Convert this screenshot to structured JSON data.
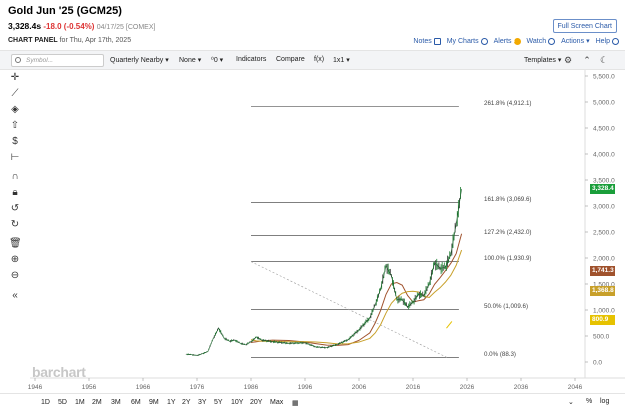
{
  "header": {
    "title": "Gold Jun '25 (GCM25)",
    "last": "3,328.4s",
    "change": "-18.0 (-0.54%)",
    "meta": "04/17/25 [COMEX]",
    "panel_label": "CHART PANEL",
    "panel_date": "for Thu, Apr 17th, 2025",
    "fullscreen": "Full Screen Chart",
    "links": {
      "notes": "Notes",
      "mycharts": "My Charts",
      "alerts": "Alerts",
      "watch": "Watch",
      "actions": "Actions",
      "help": "Help"
    }
  },
  "toolbar": {
    "search_placeholder": "Symbol...",
    "period": "Quarterly Nearby",
    "none": "None",
    "zero": "0",
    "indicators": "Indicators",
    "compare": "Compare",
    "fx": "f(x)",
    "ratio": "1x1",
    "templates": "Templates"
  },
  "left_tools": [
    "crosshair-icon",
    "trendline-icon",
    "pattern-icon",
    "arrow-icon",
    "dollar-icon",
    "measure-icon",
    "magnet-icon",
    "lock-icon",
    "reset-icon",
    "redo-icon",
    "delete-icon",
    "zoom-in-icon",
    "zoom-out-icon",
    "collapse-icon"
  ],
  "timeframes": [
    "1D",
    "5D",
    "1M",
    "2M",
    "3M",
    "6M",
    "9M",
    "1Y",
    "2Y",
    "3Y",
    "5Y",
    "10Y",
    "20Y",
    "Max"
  ],
  "bottom_right": {
    "percent": "%",
    "log": "log"
  },
  "watermark": "barchart",
  "colors": {
    "up": "#1a7d2e",
    "down": "#333333",
    "last_tag": "#1a9e3a",
    "ma1": "#a0522d",
    "ma2": "#c8a02a",
    "ma3": "#e6c200"
  },
  "chart_data": {
    "type": "line",
    "title": "Gold Jun '25 (GCM25)",
    "x_ticks": [
      "1946",
      "1956",
      "1966",
      "1976",
      "1986",
      "1996",
      "2006",
      "2016",
      "2026",
      "2036",
      "2046"
    ],
    "y_ticks": [
      "5,500.0",
      "5,000.0",
      "4,500.0",
      "4,000.0",
      "3,500.0",
      "3,000.0",
      "2,500.0",
      "2,000.0",
      "1,500.0",
      "1,000.0",
      "500.0",
      "0.0"
    ],
    "ylim": [
      -150,
      5550
    ],
    "series": [
      {
        "name": "",
        "x": [
          1974,
          1975,
          1976,
          1977,
          1978,
          1979,
          1980,
          1981,
          1982,
          1983,
          1984,
          1985,
          1986,
          1987,
          1988,
          1990,
          1993,
          1996,
          1998,
          2000,
          2002,
          2004,
          2006,
          2008,
          2009,
          2010,
          2011,
          2012,
          2013,
          2014,
          2015,
          2016,
          2017,
          2018,
          2019,
          2020,
          2021,
          2022,
          2023,
          2024,
          2025
        ],
        "y": [
          150,
          140,
          125,
          160,
          200,
          450,
          650,
          460,
          400,
          420,
          360,
          330,
          390,
          480,
          420,
          390,
          360,
          370,
          290,
          275,
          340,
          430,
          620,
          850,
          1100,
          1400,
          1850,
          1660,
          1200,
          1200,
          1060,
          1150,
          1300,
          1280,
          1500,
          1900,
          1800,
          1820,
          2070,
          2650,
          3328.4
        ]
      }
    ],
    "fib_levels": [
      {
        "label": "261.8% (4,912.1)",
        "value": 4912.1
      },
      {
        "label": "161.8% (3,069.6)",
        "value": 3069.6
      },
      {
        "label": "127.2% (2,432.0)",
        "value": 2432.0
      },
      {
        "label": "100.0% (1,930.9)",
        "value": 1930.9
      },
      {
        "label": "50.0% (1,009.6)",
        "value": 1009.6
      },
      {
        "label": "0.0% (88.3)",
        "value": 88.3
      }
    ],
    "tags": [
      {
        "label": "3,328.4",
        "value": 3328.4,
        "color": "#1a9e3a"
      },
      {
        "label": "1,741.3",
        "value": 1741.3,
        "color": "#a0522d"
      },
      {
        "label": "1,368.8",
        "value": 1368.8,
        "color": "#c8a02a"
      },
      {
        "label": "800.9",
        "value": 800.9,
        "color": "#e6c200"
      }
    ]
  }
}
